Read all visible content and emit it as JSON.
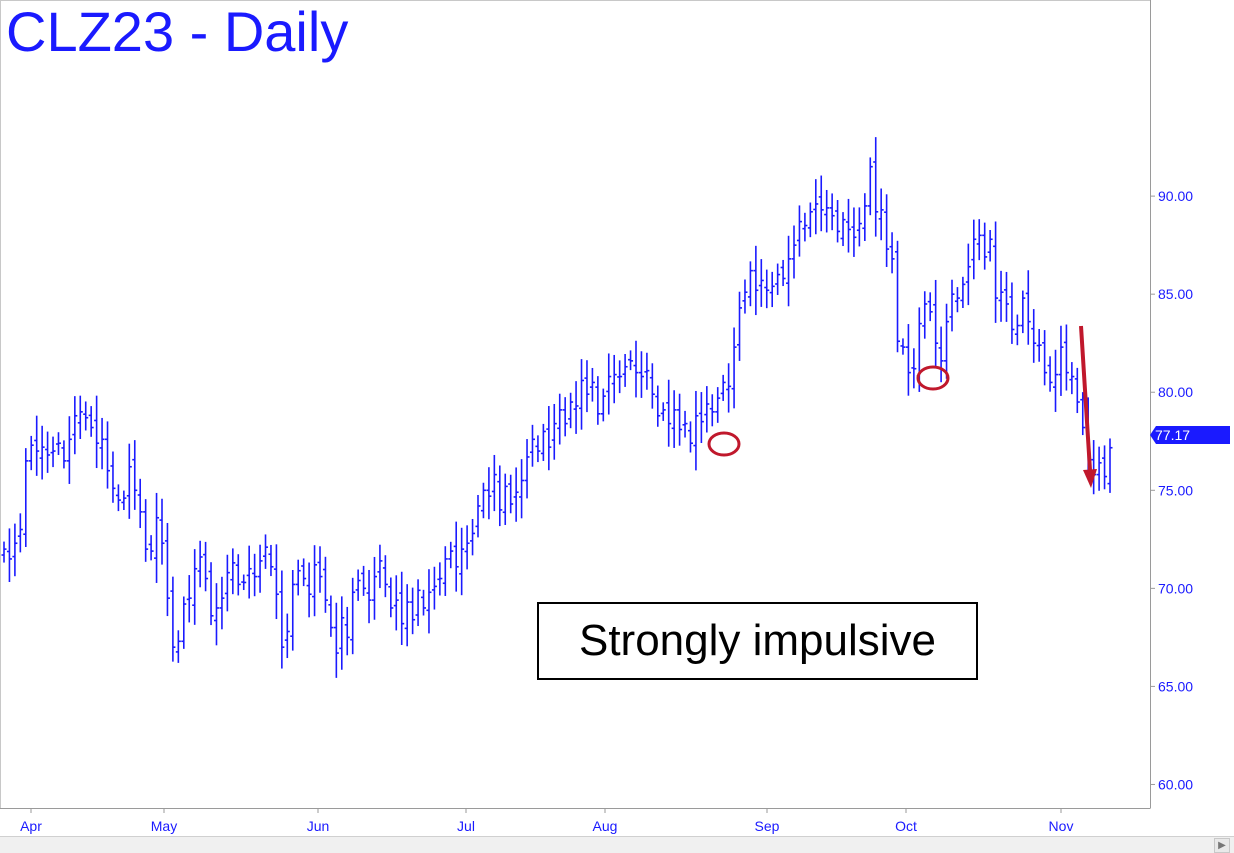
{
  "title": "CLZ23 - Daily",
  "annotation": "Strongly impulsive",
  "colors": {
    "bars": "#1a1aff",
    "annotation_red": "#c0182c",
    "axis": "#9a9a9a",
    "label_bg": "#1a1aff"
  },
  "chart_data": {
    "type": "ohlc",
    "x_labels": [
      "Apr",
      "May",
      "Jun",
      "Jul",
      "Aug",
      "Sep",
      "Oct",
      "Nov"
    ],
    "y_ticks": [
      "90.00",
      "85.00",
      "80.00",
      "75.00",
      "70.00",
      "65.00",
      "60.00"
    ],
    "ylim": [
      58.8,
      100
    ],
    "last_price": "77.17",
    "closes": [
      72.0,
      71.5,
      72.3,
      73.0,
      76.5,
      77.3,
      77.0,
      77.2,
      76.8,
      77.0,
      77.4,
      76.5,
      77.6,
      78.8,
      79.0,
      78.7,
      78.2,
      77.4,
      77.6,
      76.0,
      75.1,
      74.5,
      74.6,
      76.2,
      75.0,
      73.9,
      72.0,
      71.9,
      73.6,
      72.3,
      69.5,
      67.0,
      67.3,
      69.2,
      69.5,
      71.0,
      71.6,
      70.5,
      68.6,
      69.0,
      69.5,
      70.8,
      71.3,
      70.2,
      70.3,
      71.0,
      70.6,
      71.4,
      72.1,
      71.1,
      69.7,
      67.0,
      67.8,
      70.2,
      70.9,
      70.5,
      69.7,
      71.2,
      70.6,
      69.4,
      68.0,
      66.7,
      68.5,
      67.5,
      69.8,
      70.4,
      70.0,
      69.4,
      70.6,
      71.4,
      70.2,
      69.0,
      69.4,
      68.2,
      69.3,
      68.4,
      69.9,
      69.0,
      69.8,
      70.1,
      70.5,
      71.5,
      71.9,
      71.1,
      72.0,
      72.3,
      72.8,
      74.2,
      75.0,
      74.7,
      75.8,
      74.0,
      75.2,
      74.3,
      74.9,
      75.5,
      76.7,
      77.6,
      77.0,
      78.0,
      77.2,
      78.4,
      79.1,
      78.4,
      79.5,
      79.3,
      80.6,
      79.9,
      80.5,
      78.9,
      79.8,
      80.8,
      80.9,
      80.8,
      81.3,
      81.6,
      81.0,
      80.8,
      81.1,
      79.9,
      78.8,
      79.1,
      78.4,
      79.1,
      78.1,
      78.4,
      77.4,
      78.8,
      78.5,
      79.4,
      79.0,
      79.7,
      80.5,
      80.3,
      82.3,
      84.3,
      85.1,
      86.2,
      85.2,
      85.7,
      85.2,
      85.4,
      86.0,
      85.8,
      86.8,
      87.5,
      88.7,
      88.5,
      89.2,
      89.6,
      89.3,
      89.4,
      89.0,
      88.2,
      88.8,
      88.3,
      87.9,
      88.6,
      89.5,
      91.5,
      89.2,
      89.3,
      87.3,
      86.8,
      82.6,
      82.3,
      81.0,
      81.2,
      83.5,
      84.5,
      84.1,
      82.5,
      81.6,
      83.6,
      85.0,
      84.8,
      85.5,
      86.4,
      87.8,
      88.0,
      86.9,
      87.8,
      84.8,
      85.1,
      84.5,
      83.2,
      83.4,
      84.8,
      83.6,
      82.5,
      82.4,
      81.0,
      80.5,
      80.9,
      82.3,
      81.0,
      80.8,
      79.5,
      78.2,
      76.8,
      75.8,
      76.4,
      75.7,
      77.17
    ],
    "annotations": [
      "circle at late-Aug swing low (~76.8)",
      "circle at early-Oct swing low (~80.3)",
      "red arrow pointing down from ~82.5 to ~75 in early Nov"
    ]
  }
}
